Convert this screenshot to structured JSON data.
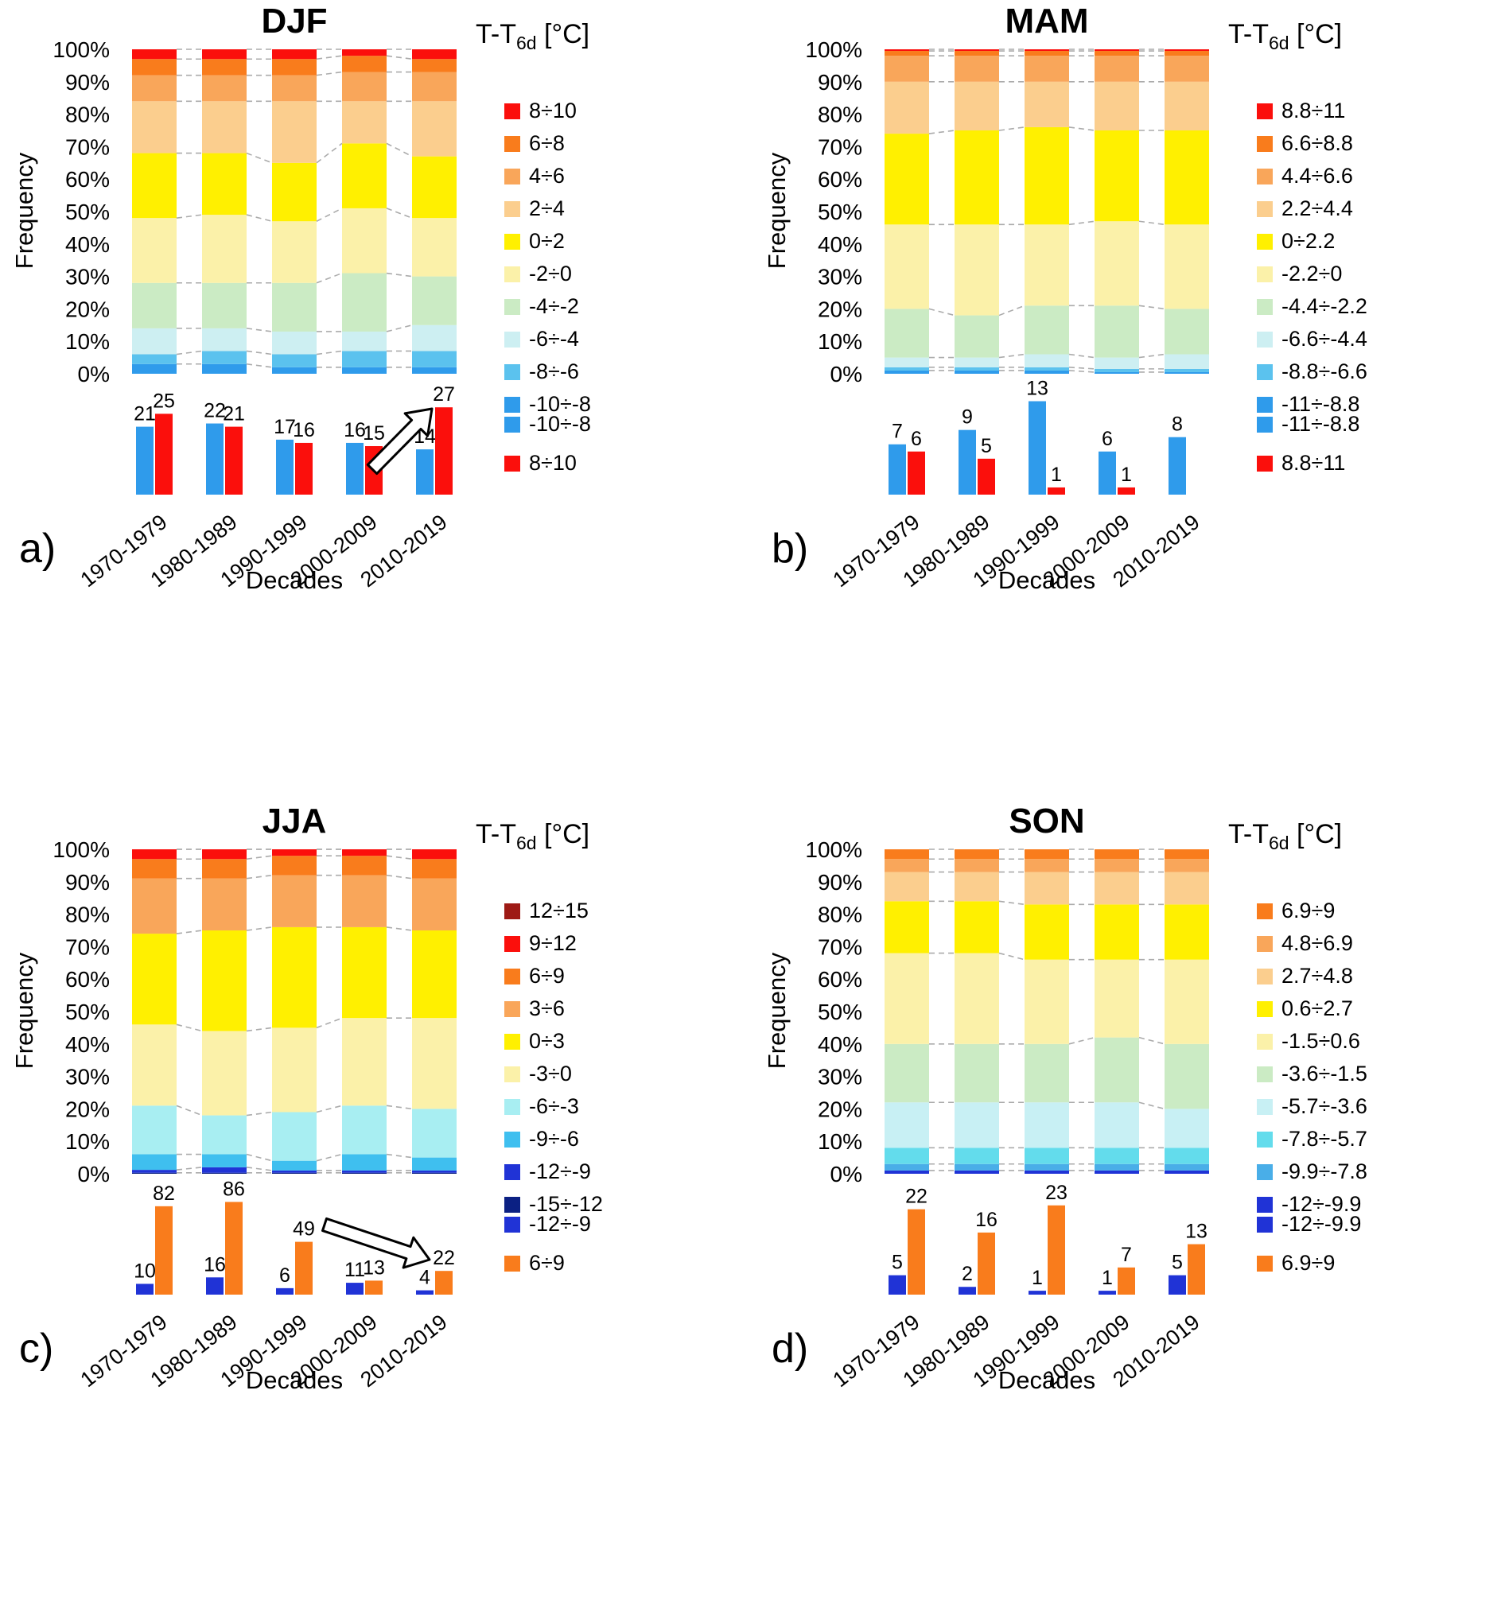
{
  "page": {
    "background": "#ffffff"
  },
  "chart_data": [
    {
      "id": "a",
      "letter": "a)",
      "title": "DJF",
      "type": "stacked-bar",
      "legend_title": {
        "main": "T-T",
        "sub": "6d",
        "unit": " [°C]"
      },
      "ylabel": "Frequency",
      "xlabel": "Decades",
      "y_ticks": [
        "0%",
        "10%",
        "20%",
        "30%",
        "40%",
        "50%",
        "60%",
        "70%",
        "80%",
        "90%",
        "100%"
      ],
      "decades": [
        "1970-1979",
        "1980-1989",
        "1990-1999",
        "2000-2009",
        "2010-2019"
      ],
      "bins_bottom_to_top": [
        {
          "label": "-10÷-8",
          "color": "#2F9BEB"
        },
        {
          "label": "-8÷-6",
          "color": "#5BC2EE"
        },
        {
          "label": "-6÷-4",
          "color": "#CDEFF2"
        },
        {
          "label": "-4÷-2",
          "color": "#CBEBC4"
        },
        {
          "label": "-2÷0",
          "color": "#FBF1A9"
        },
        {
          "label": "0÷2",
          "color": "#FFF000"
        },
        {
          "label": "2÷4",
          "color": "#FBCE8E"
        },
        {
          "label": "4÷6",
          "color": "#F9A65A"
        },
        {
          "label": "6÷8",
          "color": "#F97C1C"
        },
        {
          "label": "8÷10",
          "color": "#FB0F0C"
        }
      ],
      "stacked_values": [
        [
          3,
          3,
          8,
          14,
          20,
          20,
          16,
          8,
          5,
          3
        ],
        [
          3,
          4,
          7,
          14,
          21,
          19,
          16,
          8,
          5,
          3
        ],
        [
          2,
          4,
          7,
          15,
          19,
          18,
          19,
          8,
          5,
          3
        ],
        [
          2,
          5,
          6,
          18,
          20,
          20,
          13,
          9,
          5,
          2
        ],
        [
          2,
          5,
          8,
          15,
          18,
          19,
          17,
          9,
          4,
          3
        ]
      ],
      "sub_chart": {
        "ymax": 30,
        "series": [
          {
            "label": "-10÷-8",
            "color": "#2F9BEB",
            "values": [
              21,
              22,
              17,
              16,
              14
            ]
          },
          {
            "label": "8÷10",
            "color": "#FB0F0C",
            "values": [
              25,
              21,
              16,
              15,
              27
            ]
          }
        ]
      },
      "arrow": {
        "from": [
          468,
          590
        ],
        "to": [
          543,
          514
        ]
      }
    },
    {
      "id": "b",
      "letter": "b)",
      "title": "MAM",
      "type": "stacked-bar",
      "legend_title": {
        "main": "T-T",
        "sub": "6d",
        "unit": " [°C]"
      },
      "ylabel": "Frequency",
      "xlabel": "Decades",
      "y_ticks": [
        "0%",
        "10%",
        "20%",
        "30%",
        "40%",
        "50%",
        "60%",
        "70%",
        "80%",
        "90%",
        "100%"
      ],
      "decades": [
        "1970-1979",
        "1980-1989",
        "1990-1999",
        "2000-2009",
        "2010-2019"
      ],
      "bins_bottom_to_top": [
        {
          "label": "-11÷-8.8",
          "color": "#2F9BEB"
        },
        {
          "label": "-8.8÷-6.6",
          "color": "#5BC2EE"
        },
        {
          "label": "-6.6÷-4.4",
          "color": "#CDEFF2"
        },
        {
          "label": "-4.4÷-2.2",
          "color": "#CBEBC4"
        },
        {
          "label": "-2.2÷0",
          "color": "#FBF1A9"
        },
        {
          "label": "0÷2.2",
          "color": "#FFF000"
        },
        {
          "label": "2.2÷4.4",
          "color": "#FBCE8E"
        },
        {
          "label": "4.4÷6.6",
          "color": "#F9A65A"
        },
        {
          "label": "6.6÷8.8",
          "color": "#F97C1C"
        },
        {
          "label": "8.8÷11",
          "color": "#FB0F0C"
        }
      ],
      "stacked_values": [
        [
          1,
          1,
          3,
          15,
          26,
          28,
          16,
          8,
          1.5,
          0.5
        ],
        [
          1,
          1,
          3,
          13,
          28,
          29,
          15,
          8,
          1.5,
          0.5
        ],
        [
          1,
          1,
          4,
          15,
          25,
          30,
          14,
          8,
          1.5,
          0.5
        ],
        [
          0.5,
          1,
          3.5,
          16,
          26,
          28,
          15,
          8,
          1.5,
          0.5
        ],
        [
          0.5,
          1,
          4.5,
          14,
          26,
          29,
          15,
          8,
          1.5,
          0.5
        ]
      ],
      "sub_chart": {
        "ymax": 13.5,
        "series": [
          {
            "label": "-11÷-8.8",
            "color": "#2F9BEB",
            "values": [
              7,
              9,
              13,
              6,
              8
            ]
          },
          {
            "label": "8.8÷11",
            "color": "#FB0F0C",
            "values": [
              6,
              5,
              1,
              1,
              0
            ]
          }
        ]
      },
      "arrow": null
    },
    {
      "id": "c",
      "letter": "c)",
      "title": "JJA",
      "type": "stacked-bar",
      "legend_title": {
        "main": "T-T",
        "sub": "6d",
        "unit": " [°C]"
      },
      "ylabel": "Frequency",
      "xlabel": "Decades",
      "y_ticks": [
        "0%",
        "10%",
        "20%",
        "30%",
        "40%",
        "50%",
        "60%",
        "70%",
        "80%",
        "90%",
        "100%"
      ],
      "decades": [
        "1970-1979",
        "1980-1989",
        "1990-1999",
        "2000-2009",
        "2010-2019"
      ],
      "bins_bottom_to_top": [
        {
          "label": "-15÷-12",
          "color": "#0B2083"
        },
        {
          "label": "-12÷-9",
          "color": "#2033D6"
        },
        {
          "label": "-9÷-6",
          "color": "#3FBFEF"
        },
        {
          "label": "-6÷-3",
          "color": "#A8EEF2"
        },
        {
          "label": "-3÷0",
          "color": "#FBF1A9"
        },
        {
          "label": "0÷3",
          "color": "#FFF000"
        },
        {
          "label": "3÷6",
          "color": "#F9A65A"
        },
        {
          "label": "6÷9",
          "color": "#F97C1C"
        },
        {
          "label": "9÷12",
          "color": "#FB0F0C"
        },
        {
          "label": "12÷15",
          "color": "#9E1A15"
        }
      ],
      "stacked_values": [
        [
          0.3,
          0.9,
          4.8,
          15,
          25,
          28,
          17,
          6,
          3,
          0
        ],
        [
          0.3,
          1.7,
          4,
          12,
          26,
          31,
          16,
          6,
          3,
          0
        ],
        [
          0.3,
          0.7,
          3,
          15,
          26,
          31,
          16,
          6,
          2,
          0
        ],
        [
          0.3,
          0.7,
          5,
          15,
          27,
          28,
          16,
          6,
          2,
          0
        ],
        [
          0.3,
          0.7,
          4,
          15,
          28,
          27,
          16,
          6,
          3,
          0
        ]
      ],
      "sub_chart": {
        "ymax": 90,
        "series": [
          {
            "label": "-12÷-9",
            "color": "#2033D6",
            "values": [
              10,
              16,
              6,
              11,
              4
            ]
          },
          {
            "label": "6÷9",
            "color": "#F97C1C",
            "values": [
              82,
              86,
              49,
              13,
              22
            ]
          }
        ]
      },
      "arrow": {
        "from": [
          408,
          534
        ],
        "to": [
          540,
          578
        ]
      }
    },
    {
      "id": "d",
      "letter": "d)",
      "title": "SON",
      "type": "stacked-bar",
      "legend_title": {
        "main": "T-T",
        "sub": "6d",
        "unit": " [°C]"
      },
      "ylabel": "Frequency",
      "xlabel": "Decades",
      "y_ticks": [
        "0%",
        "10%",
        "20%",
        "30%",
        "40%",
        "50%",
        "60%",
        "70%",
        "80%",
        "90%",
        "100%"
      ],
      "decades": [
        "1970-1979",
        "1980-1989",
        "1990-1999",
        "2000-2009",
        "2010-2019"
      ],
      "bins_bottom_to_top": [
        {
          "label": "-12÷-9.9",
          "color": "#2033D6"
        },
        {
          "label": "-9.9÷-7.8",
          "color": "#49AEE8"
        },
        {
          "label": "-7.8÷-5.7",
          "color": "#63DCEC"
        },
        {
          "label": "-5.7÷-3.6",
          "color": "#C8F0F4"
        },
        {
          "label": "-3.6÷-1.5",
          "color": "#CBEBC4"
        },
        {
          "label": "-1.5÷0.6",
          "color": "#FBF1A9"
        },
        {
          "label": "0.6÷2.7",
          "color": "#FFF000"
        },
        {
          "label": "2.7÷4.8",
          "color": "#FBCE8E"
        },
        {
          "label": "4.8÷6.9",
          "color": "#F9A65A"
        },
        {
          "label": "6.9÷9",
          "color": "#F97C1C"
        }
      ],
      "stacked_values": [
        [
          1,
          2,
          5,
          14,
          18,
          28,
          16,
          9,
          4,
          3
        ],
        [
          1,
          2,
          5,
          14,
          18,
          28,
          16,
          9,
          4,
          3
        ],
        [
          1,
          2,
          5,
          14,
          18,
          26,
          17,
          10,
          4,
          3
        ],
        [
          1,
          2,
          5,
          14,
          20,
          24,
          17,
          10,
          4,
          3
        ],
        [
          1,
          2,
          5,
          12,
          20,
          26,
          17,
          10,
          4,
          3
        ]
      ],
      "sub_chart": {
        "ymax": 25,
        "series": [
          {
            "label": "-12÷-9.9",
            "color": "#2033D6",
            "values": [
              5,
              2,
              1,
              1,
              5
            ]
          },
          {
            "label": "6.9÷9",
            "color": "#F97C1C",
            "values": [
              22,
              16,
              23,
              7,
              13
            ]
          }
        ]
      },
      "arrow": null
    }
  ]
}
